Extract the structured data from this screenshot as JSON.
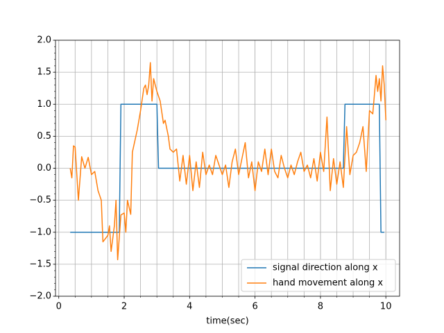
{
  "chart_data": {
    "type": "line",
    "xlabel": "time(sec)",
    "xlim": [
      -0.1,
      10.42
    ],
    "ylim": [
      -2,
      2
    ],
    "xticks": [
      0,
      2,
      4,
      6,
      8,
      10
    ],
    "yticks": [
      {
        "value": -2,
        "label": "−2.0"
      },
      {
        "value": -1.5,
        "label": "−1.5"
      },
      {
        "value": -1,
        "label": "−1.0"
      },
      {
        "value": -0.5,
        "label": "−0.5"
      },
      {
        "value": 0,
        "label": "0.0"
      },
      {
        "value": 0.5,
        "label": "0.5"
      },
      {
        "value": 1,
        "label": "1.0"
      },
      {
        "value": 1.5,
        "label": "1.5"
      },
      {
        "value": 2,
        "label": "2.0"
      }
    ],
    "x_minor_step": 0.5,
    "y_minor_step": 0.1,
    "grid": true,
    "x_minor_grid": true,
    "legend": "lower right",
    "series": [
      {
        "name": "signal direction along x",
        "color": "#1f77b4",
        "x": [
          0.35,
          1.85,
          1.9,
          3.0,
          3.05,
          8.7,
          8.75,
          9.8,
          9.85,
          9.95
        ],
        "values": [
          -1,
          -1,
          1,
          1,
          0,
          0,
          1,
          1,
          -1,
          -1
        ]
      },
      {
        "name": "hand movement along x",
        "color": "#ff7f0e",
        "x": [
          0.35,
          0.4,
          0.45,
          0.5,
          0.6,
          0.7,
          0.8,
          0.9,
          1.0,
          1.1,
          1.2,
          1.3,
          1.35,
          1.5,
          1.55,
          1.6,
          1.7,
          1.75,
          1.8,
          1.9,
          2.0,
          2.05,
          2.1,
          2.2,
          2.25,
          2.4,
          2.5,
          2.6,
          2.65,
          2.7,
          2.75,
          2.8,
          2.85,
          2.9,
          3.0,
          3.1,
          3.2,
          3.25,
          3.35,
          3.4,
          3.5,
          3.6,
          3.7,
          3.8,
          3.9,
          4.0,
          4.1,
          4.2,
          4.3,
          4.4,
          4.5,
          4.6,
          4.7,
          4.8,
          4.9,
          5.0,
          5.1,
          5.2,
          5.3,
          5.4,
          5.5,
          5.6,
          5.7,
          5.8,
          5.9,
          6.0,
          6.1,
          6.2,
          6.3,
          6.4,
          6.5,
          6.6,
          6.7,
          6.8,
          6.9,
          7.0,
          7.1,
          7.2,
          7.3,
          7.4,
          7.5,
          7.6,
          7.7,
          7.8,
          7.9,
          8.0,
          8.1,
          8.2,
          8.3,
          8.4,
          8.5,
          8.6,
          8.7,
          8.8,
          8.9,
          9.0,
          9.1,
          9.2,
          9.3,
          9.4,
          9.5,
          9.6,
          9.7,
          9.75,
          9.8,
          9.85,
          9.9,
          9.95,
          10.0
        ],
        "values": [
          0,
          -0.15,
          0.35,
          0.33,
          -0.5,
          0.18,
          0,
          0.17,
          -0.1,
          -0.05,
          -0.35,
          -0.5,
          -1.15,
          -1.05,
          -0.9,
          -1.3,
          -0.9,
          -0.5,
          -1.43,
          -0.73,
          -0.7,
          -1.0,
          -0.5,
          -0.72,
          0.25,
          0.6,
          0.9,
          1.25,
          1.3,
          1.15,
          1.3,
          1.65,
          1.05,
          1.4,
          1.2,
          1.05,
          0.7,
          0.75,
          0.5,
          0.3,
          0.25,
          0.3,
          -0.2,
          0.2,
          -0.25,
          0.2,
          -0.35,
          0.1,
          -0.3,
          0.25,
          -0.1,
          0.05,
          -0.1,
          0.2,
          0.05,
          -0.1,
          0.05,
          -0.3,
          0.1,
          0.3,
          -0.1,
          0.15,
          0.4,
          -0.15,
          0.1,
          -0.35,
          0.1,
          -0.05,
          0.3,
          -0.1,
          0.3,
          -0.05,
          -0.15,
          0.2,
          0,
          -0.15,
          0.05,
          -0.1,
          0.1,
          0.25,
          -0.05,
          0.05,
          -0.15,
          0.15,
          -0.2,
          0.25,
          -0.05,
          0.8,
          -0.35,
          0.15,
          -0.25,
          0.1,
          -0.3,
          0.65,
          -0.1,
          0.2,
          0.25,
          0.4,
          0.65,
          -0.05,
          0.9,
          0.85,
          1.45,
          1.2,
          1.4,
          1.05,
          1.6,
          1.3,
          0.75
        ]
      }
    ]
  }
}
